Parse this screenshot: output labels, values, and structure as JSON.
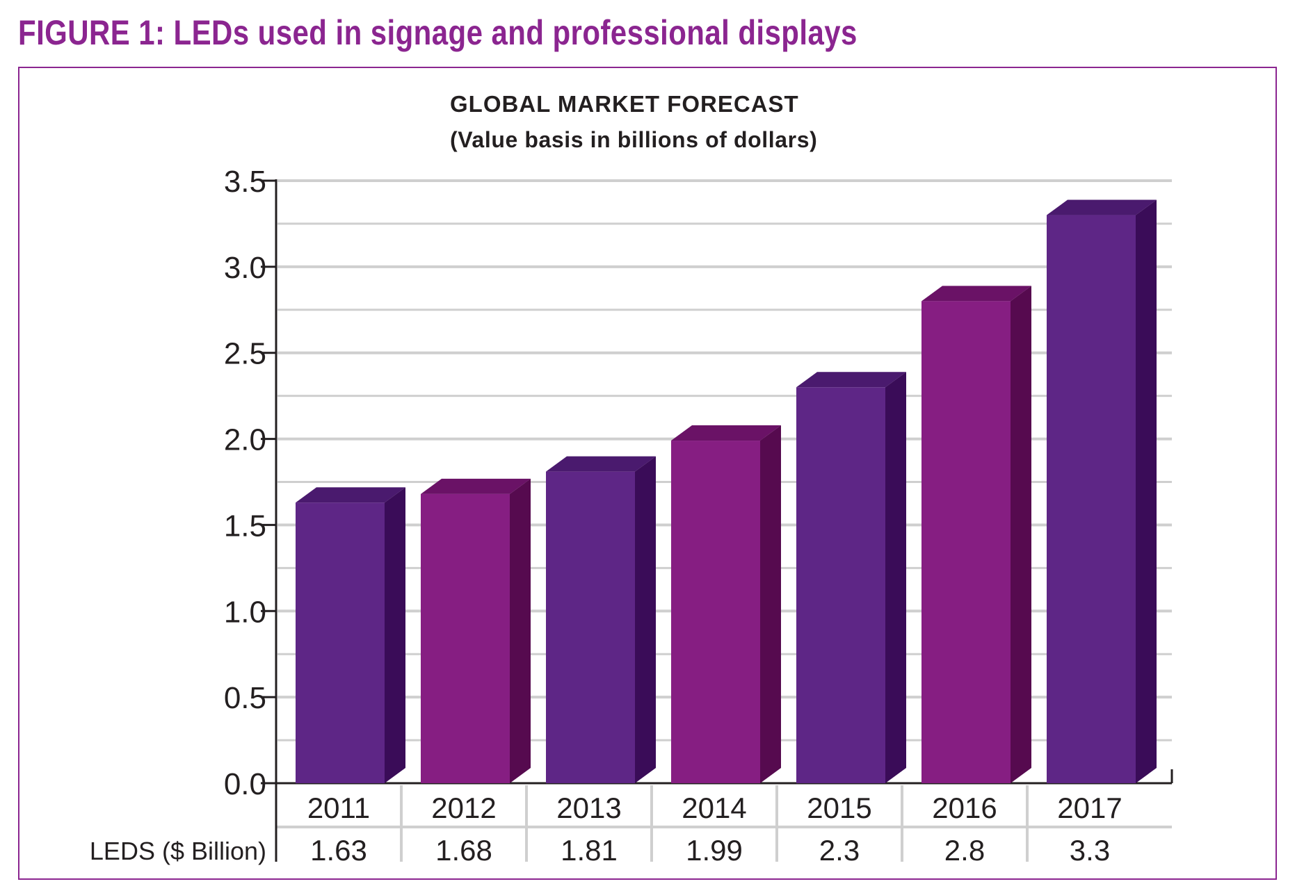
{
  "figure_title": "FIGURE 1: LEDs used in signage and professional displays",
  "chart_data": {
    "type": "bar",
    "title": "GLOBAL MARKET FORECAST",
    "subtitle": "(Value basis in billions of dollars)",
    "categories": [
      "2011",
      "2012",
      "2013",
      "2014",
      "2015",
      "2016",
      "2017"
    ],
    "series": [
      {
        "name": "LEDS ($ Billion)",
        "values": [
          1.63,
          1.68,
          1.81,
          1.99,
          2.3,
          2.8,
          3.3
        ],
        "value_labels": [
          "1.63",
          "1.68",
          "1.81",
          "1.99",
          "2.3",
          "2.8",
          "3.3"
        ]
      }
    ],
    "y_ticks": [
      "0.0",
      "0.5",
      "1.0",
      "1.5",
      "2.0",
      "2.5",
      "3.0",
      "3.5"
    ],
    "ylim": [
      0,
      3.5
    ],
    "xlabel": "",
    "ylabel": "",
    "grid": true,
    "style": "3d-bar",
    "bar_colors": [
      {
        "front": "#5e2686",
        "top": "#4a1a6e",
        "side": "#3a0c58"
      },
      {
        "front": "#861e82",
        "top": "#6a1266",
        "side": "#560a4f"
      },
      {
        "front": "#5e2686",
        "top": "#4a1a6e",
        "side": "#3a0c58"
      },
      {
        "front": "#861e82",
        "top": "#6a1266",
        "side": "#560a4f"
      },
      {
        "front": "#5e2686",
        "top": "#4a1a6e",
        "side": "#3a0c58"
      },
      {
        "front": "#861e82",
        "top": "#6a1266",
        "side": "#560a4f"
      },
      {
        "front": "#5e2686",
        "top": "#4a1a6e",
        "side": "#3a0c58"
      }
    ]
  },
  "colors": {
    "accent": "#8b2590",
    "gridline": "#cfcfcf",
    "axis": "#231f20"
  }
}
